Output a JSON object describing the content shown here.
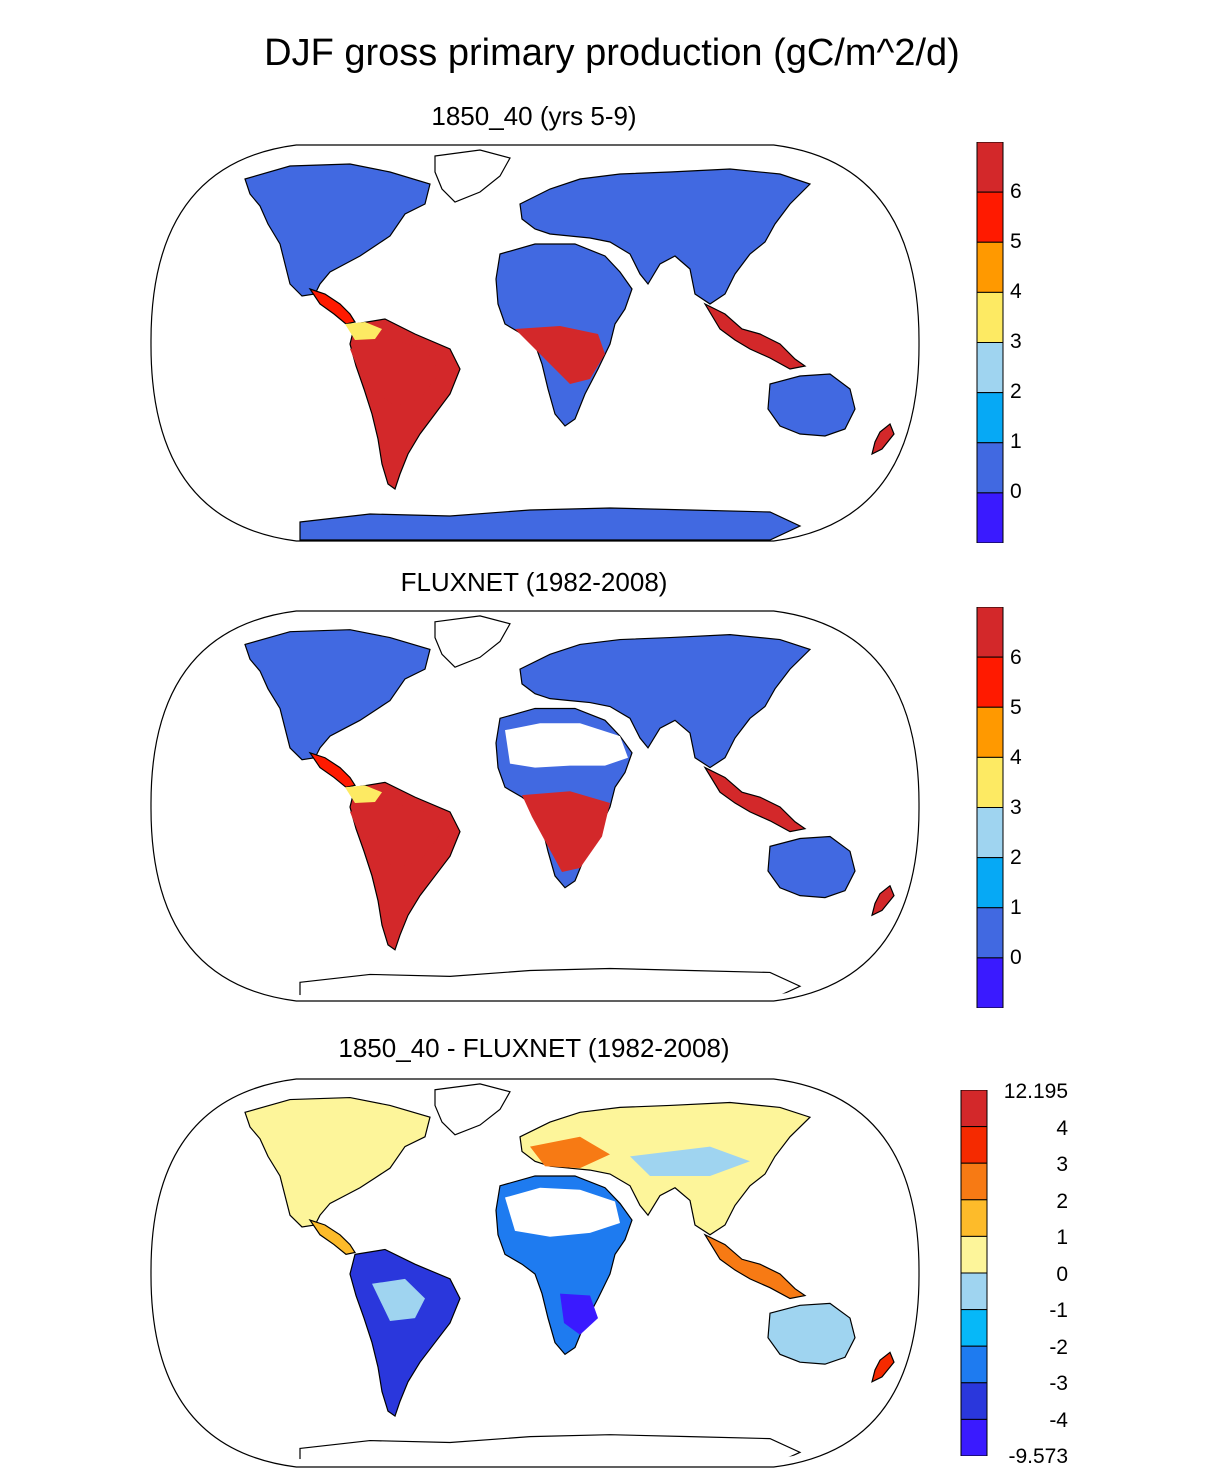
{
  "title": "DJF gross primary production (gC/m^2/d)",
  "colors": {
    "abs_scale": [
      "#3a1aff",
      "#4169e1",
      "#06a9f5",
      "#9fd4f0",
      "#fdea63",
      "#ff9900",
      "#ff1a00",
      "#d3282a"
    ],
    "diff_scale": [
      "#3a1aff",
      "#2a37dc",
      "#1e7bf0",
      "#06b8f8",
      "#9fd4f0",
      "#fdf59a",
      "#fdbb2a",
      "#f77a14",
      "#f52a00",
      "#d3282a"
    ],
    "ocean": "#ffffff",
    "missing": "#ffffff",
    "coastline": "#000000"
  },
  "panels": [
    {
      "title": "1850_40 (yrs 5-9)",
      "colorbar_labels": [
        "6",
        "5",
        "4",
        "3",
        "2",
        "1",
        "0"
      ],
      "scale": "abs_scale"
    },
    {
      "title": "FLUXNET (1982-2008)",
      "colorbar_labels": [
        "6",
        "5",
        "4",
        "3",
        "2",
        "1",
        "0"
      ],
      "scale": "abs_scale"
    },
    {
      "title": "1850_40 - FLUXNET (1982-2008)",
      "colorbar_labels": [
        "12.195",
        "4",
        "3",
        "2",
        "1",
        "0",
        "-1",
        "-2",
        "-3",
        "-4",
        "-9.573"
      ],
      "scale": "diff_scale"
    }
  ]
}
